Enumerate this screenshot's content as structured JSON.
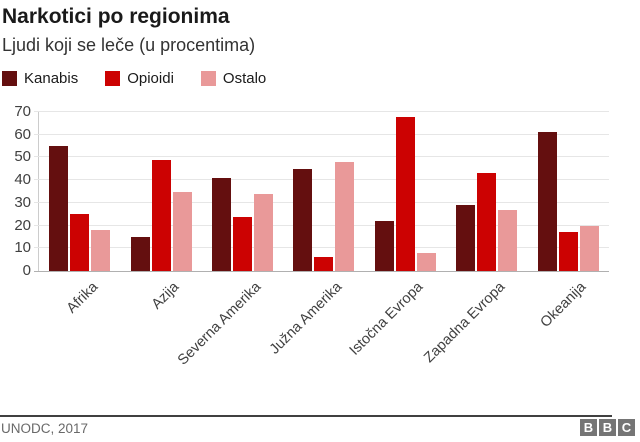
{
  "header": {
    "title": "Narkotici po regionima",
    "subtitle": "Ljudi koji se leče (u procentima)"
  },
  "chart_data": {
    "type": "bar",
    "title": "Narkotici po regionima",
    "subtitle": "Ljudi koji se leče (u procentima)",
    "categories": [
      "Afrika",
      "Azija",
      "Severna Amerika",
      "Južna Amerika",
      "Istočna Evropa",
      "Zapadna Evropa",
      "Okeanija"
    ],
    "series": [
      {
        "name": "Kanabis",
        "color": "#640f0f",
        "values": [
          55,
          15,
          41,
          45,
          22,
          29,
          61
        ]
      },
      {
        "name": "Opioidi",
        "color": "#cc0202",
        "values": [
          25,
          49,
          24,
          6,
          68,
          43,
          17
        ]
      },
      {
        "name": "Ostalo",
        "color": "#e99999",
        "values": [
          18,
          35,
          34,
          48,
          8,
          27,
          20
        ]
      }
    ],
    "xlabel": "",
    "ylabel": "",
    "ylim": [
      0,
      70
    ],
    "yticks": [
      0,
      10,
      20,
      30,
      40,
      50,
      60,
      70
    ],
    "grid": true,
    "legend_position": "top"
  },
  "footer": {
    "source": "UNODC, 2017",
    "logo_letters": [
      "B",
      "B",
      "C"
    ]
  }
}
